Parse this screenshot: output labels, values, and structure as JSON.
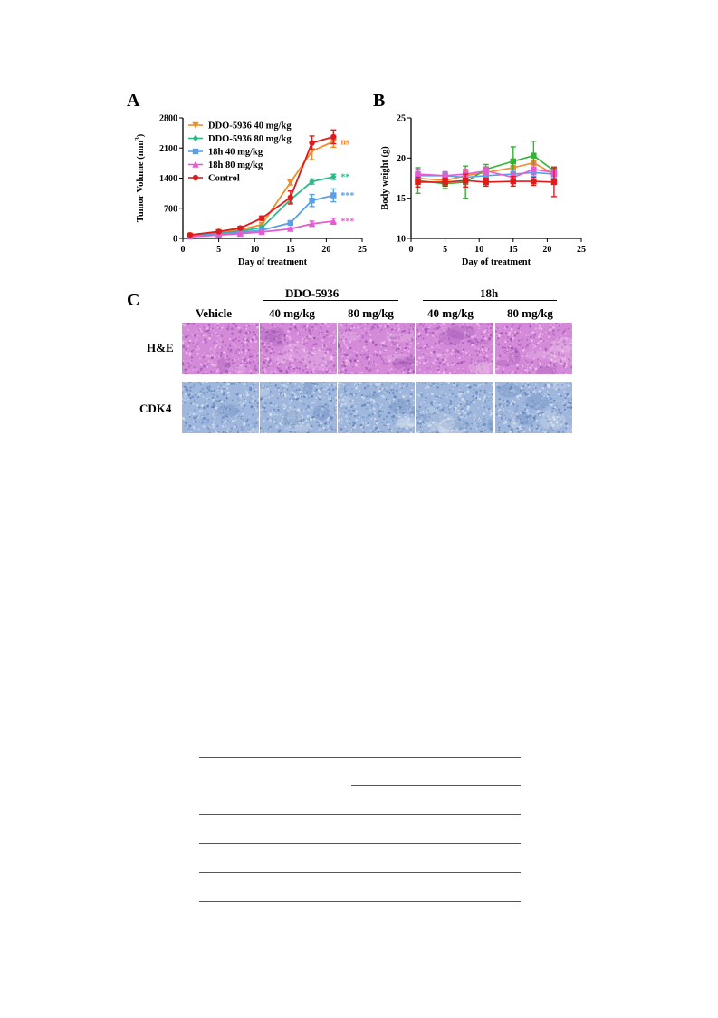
{
  "panels": {
    "a": "A",
    "b": "B",
    "c": "C"
  },
  "chart_data": [
    {
      "type": "line",
      "panel": "A",
      "xlabel": "Day of treatment",
      "ylabel_main": "Tumor Volume (mm",
      "ylabel_sup": "3",
      "ylabel_close": ")",
      "xlim": [
        0,
        25
      ],
      "ylim": [
        0,
        2800
      ],
      "x_ticks": [
        0,
        5,
        10,
        15,
        20,
        25
      ],
      "y_ticks": [
        0,
        700,
        1400,
        2100,
        2800
      ],
      "legend_placement": "top-left",
      "series": [
        {
          "name": "DDO-5936 40 mg/kg",
          "color": "#f28c28",
          "marker": "triangle-down",
          "x": [
            1,
            5,
            8,
            11,
            15,
            18,
            21
          ],
          "y": [
            70,
            150,
            200,
            320,
            1300,
            2030,
            2250
          ],
          "err": [
            20,
            25,
            30,
            50,
            60,
            200,
            130
          ],
          "significance": "ns"
        },
        {
          "name": "DDO-5936 80 mg/kg",
          "color": "#2db88a",
          "marker": "diamond",
          "x": [
            1,
            5,
            8,
            11,
            15,
            18,
            21
          ],
          "y": [
            60,
            120,
            170,
            250,
            900,
            1320,
            1430
          ],
          "err": [
            15,
            20,
            25,
            40,
            70,
            60,
            60
          ],
          "significance": "**"
        },
        {
          "name": "18h 40 mg/kg",
          "color": "#5aa0e6",
          "marker": "square",
          "x": [
            1,
            5,
            8,
            11,
            15,
            18,
            21
          ],
          "y": [
            50,
            100,
            140,
            190,
            360,
            880,
            1000
          ],
          "err": [
            15,
            20,
            25,
            30,
            40,
            140,
            150
          ],
          "significance": "***"
        },
        {
          "name": "18h 80 mg/kg",
          "color": "#e65ad2",
          "marker": "triangle-up",
          "x": [
            1,
            5,
            8,
            11,
            15,
            18,
            21
          ],
          "y": [
            40,
            80,
            110,
            150,
            220,
            340,
            400
          ],
          "err": [
            10,
            15,
            20,
            25,
            30,
            60,
            70
          ],
          "significance": "***"
        },
        {
          "name": "Control",
          "color": "#e01b1b",
          "marker": "circle",
          "x": [
            1,
            5,
            8,
            11,
            15,
            18,
            21
          ],
          "y": [
            80,
            160,
            240,
            470,
            950,
            2220,
            2360
          ],
          "err": [
            20,
            25,
            40,
            50,
            150,
            160,
            160
          ],
          "significance": ""
        }
      ]
    },
    {
      "type": "line",
      "panel": "B",
      "xlabel": "Day of treatment",
      "ylabel": "Body weight (g)",
      "xlim": [
        0,
        25
      ],
      "ylim": [
        10,
        25
      ],
      "x_ticks": [
        0,
        5,
        10,
        15,
        20,
        25
      ],
      "y_ticks": [
        10,
        15,
        20,
        25
      ],
      "series": [
        {
          "color": "#f28c28",
          "x": [
            1,
            5,
            8,
            11,
            15,
            18,
            21
          ],
          "y": [
            17.5,
            17.2,
            17.8,
            18.2,
            18.8,
            19.4,
            18.0
          ],
          "err": [
            0.6,
            0.5,
            0.6,
            0.5,
            0.8,
            0.8,
            0.6
          ]
        },
        {
          "color": "#33b233",
          "x": [
            1,
            5,
            8,
            11,
            15,
            18,
            21
          ],
          "y": [
            17.2,
            16.8,
            17.0,
            18.6,
            19.6,
            20.3,
            18.4
          ],
          "err": [
            1.6,
            0.6,
            2.0,
            0.6,
            1.8,
            1.8,
            0.5
          ]
        },
        {
          "color": "#5aa0e6",
          "x": [
            1,
            5,
            8,
            11,
            15,
            18,
            21
          ],
          "y": [
            17.8,
            17.8,
            17.6,
            17.8,
            18.0,
            18.2,
            18.0
          ],
          "err": [
            0.5,
            0.4,
            0.5,
            0.4,
            0.5,
            0.5,
            0.5
          ]
        },
        {
          "color": "#e65ad2",
          "x": [
            1,
            5,
            8,
            11,
            15,
            18,
            21
          ],
          "y": [
            18.0,
            17.8,
            18.0,
            18.4,
            17.6,
            18.6,
            18.2
          ],
          "err": [
            0.6,
            0.5,
            0.6,
            0.5,
            0.5,
            0.6,
            0.5
          ]
        },
        {
          "color": "#e01b1b",
          "x": [
            1,
            5,
            8,
            11,
            15,
            18,
            21
          ],
          "y": [
            17.0,
            17.0,
            17.2,
            17.0,
            17.1,
            17.1,
            17.0
          ],
          "err": [
            0.6,
            0.5,
            0.8,
            0.5,
            0.6,
            0.5,
            1.8
          ]
        }
      ]
    }
  ],
  "panel_c": {
    "groups": [
      "DDO-5936",
      "18h"
    ],
    "columns": [
      "Vehicle",
      "40 mg/kg",
      "80 mg/kg",
      "40 mg/kg",
      "80 mg/kg"
    ],
    "rows": [
      "H&E",
      "CDK4"
    ],
    "he_color": "#d48ad8",
    "cdk4_color": "#9fb7dc"
  }
}
